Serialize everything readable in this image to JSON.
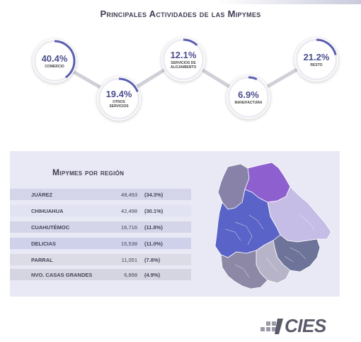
{
  "header": {
    "title": "Principales Actividades de las Mipymes"
  },
  "activities": [
    {
      "value": "40.4%",
      "label": "Comercio",
      "share": 0.404
    },
    {
      "value": "19.4%",
      "label": "Otros Servicios",
      "share": 0.194
    },
    {
      "value": "12.1%",
      "label": "Servicios de alojamiento",
      "share": 0.121
    },
    {
      "value": "6.9%",
      "label": "Manufactura",
      "share": 0.069
    },
    {
      "value": "21.2%",
      "label": "Resto",
      "share": 0.212
    }
  ],
  "region_table": {
    "title": "Mipymes por región",
    "rows": [
      {
        "region": "JUÁREZ",
        "count": "48,493",
        "share": "(34.3%)"
      },
      {
        "region": "CHIHUAHUA",
        "count": "42,498",
        "share": "(30.1%)"
      },
      {
        "region": "CUAHUTÉMOC",
        "count": "16,716",
        "share": "(11.8%)"
      },
      {
        "region": "DELICIAS",
        "count": "15,538",
        "share": "(11.0%)"
      },
      {
        "region": "PARRAL",
        "count": "11,051",
        "share": "(7.8%)"
      },
      {
        "region": "NVO. CASAS GRANDES",
        "count": "6,898",
        "share": "(4.9%)"
      }
    ]
  },
  "logo": {
    "text": "CIES"
  },
  "colors": {
    "accent": "#4b4f8d",
    "ring": "#5a5fb0",
    "ring_bg": "#e6e6ee",
    "panel": "#e8e9f4"
  }
}
